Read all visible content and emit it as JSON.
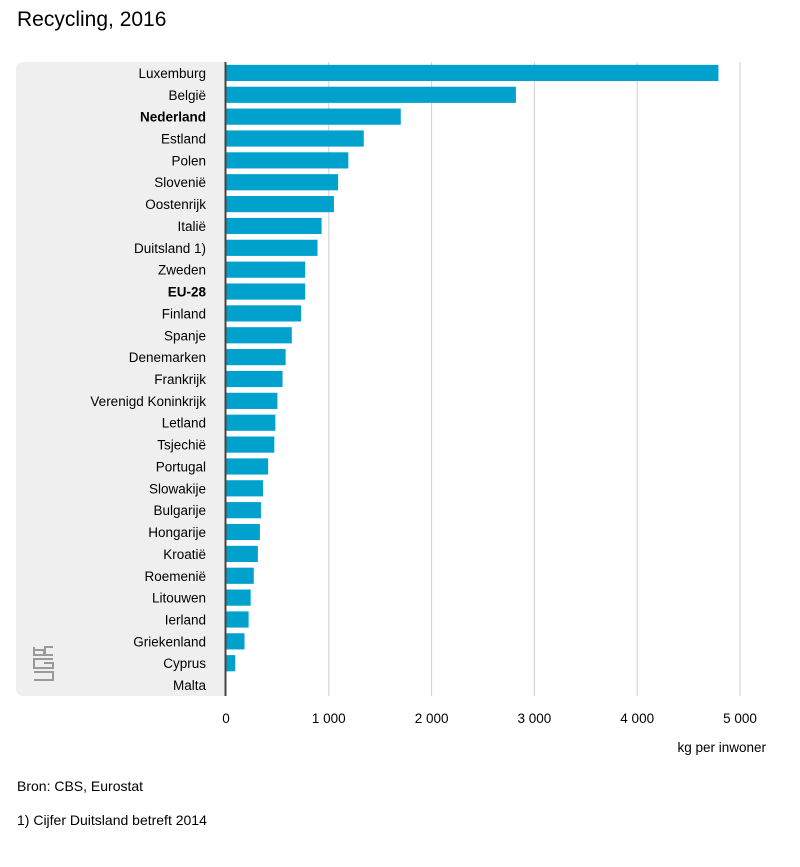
{
  "chart_data": {
    "type": "bar",
    "orientation": "horizontal",
    "title": "Recycling, 2016",
    "xlabel": "kg per inwoner",
    "xlim": [
      0,
      5000
    ],
    "x_ticks": [
      0,
      1000,
      2000,
      3000,
      4000,
      5000
    ],
    "x_tick_labels": [
      "0",
      "1 000",
      "2 000",
      "3 000",
      "4 000",
      "5 000"
    ],
    "grid": true,
    "bar_color": "#00a1cd",
    "categories": [
      "Luxemburg",
      "België",
      "Nederland",
      "Estland",
      "Polen",
      "Slovenië",
      "Oostenrijk",
      "Italië",
      "Duitsland 1)",
      "Zweden",
      "EU-28",
      "Finland",
      "Spanje",
      "Denemarken",
      "Frankrijk",
      "Verenigd Koninkrijk",
      "Letland",
      "Tsjechië",
      "Portugal",
      "Slowakije",
      "Bulgarije",
      "Hongarije",
      "Kroatië",
      "Roemenië",
      "Litouwen",
      "Ierland",
      "Griekenland",
      "Cyprus",
      "Malta"
    ],
    "bold_categories": [
      "Nederland",
      "EU-28"
    ],
    "values": [
      4790,
      2820,
      1700,
      1340,
      1190,
      1090,
      1050,
      930,
      890,
      770,
      770,
      730,
      640,
      580,
      550,
      500,
      480,
      470,
      410,
      360,
      340,
      330,
      310,
      270,
      240,
      220,
      180,
      90,
      0
    ]
  },
  "source": "Bron: CBS, Eurostat",
  "footnote": "1) Cijfer Duitsland betreft 2014",
  "logo": "cbs",
  "colors": {
    "panel": "#efefef",
    "grid": "#cfcfcf",
    "axis": "#444444"
  }
}
